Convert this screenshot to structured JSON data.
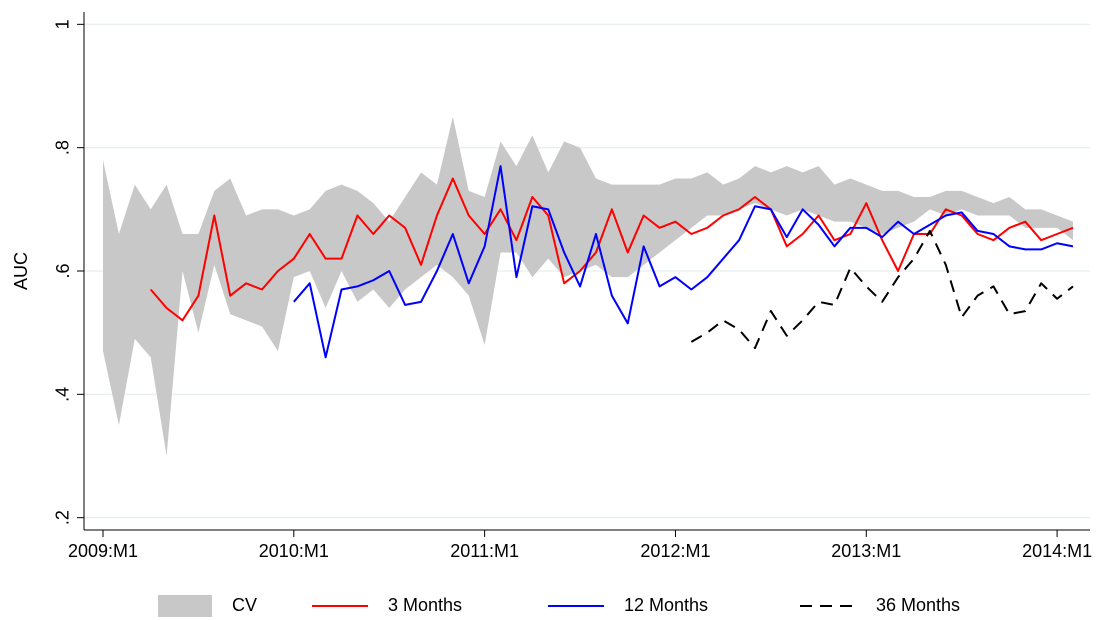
{
  "chart_data": {
    "type": "line",
    "y_label": "AUC",
    "x": [
      "2009:M1",
      "2009:M2",
      "2009:M3",
      "2009:M4",
      "2009:M5",
      "2009:M6",
      "2009:M7",
      "2009:M8",
      "2009:M9",
      "2009:M10",
      "2009:M11",
      "2009:M12",
      "2010:M1",
      "2010:M2",
      "2010:M3",
      "2010:M4",
      "2010:M5",
      "2010:M6",
      "2010:M7",
      "2010:M8",
      "2010:M9",
      "2010:M10",
      "2010:M11",
      "2010:M12",
      "2011:M1",
      "2011:M2",
      "2011:M3",
      "2011:M4",
      "2011:M5",
      "2011:M6",
      "2011:M7",
      "2011:M8",
      "2011:M9",
      "2011:M10",
      "2011:M11",
      "2011:M12",
      "2012:M1",
      "2012:M2",
      "2012:M3",
      "2012:M4",
      "2012:M5",
      "2012:M6",
      "2012:M7",
      "2012:M8",
      "2012:M9",
      "2012:M10",
      "2012:M11",
      "2012:M12",
      "2013:M1",
      "2013:M2",
      "2013:M3",
      "2013:M4",
      "2013:M5",
      "2013:M6",
      "2013:M7",
      "2013:M8",
      "2013:M9",
      "2013:M10",
      "2013:M11",
      "2013:M12",
      "2014:M1",
      "2014:M2"
    ],
    "xticks": [
      "2009:M1",
      "2010:M1",
      "2011:M1",
      "2012:M1",
      "2013:M1",
      "2014:M1"
    ],
    "ylim": [
      0.18,
      1.02
    ],
    "yticks": [
      {
        "value": 0.2,
        "label": ".2"
      },
      {
        "value": 0.4,
        "label": ".4"
      },
      {
        "value": 0.6,
        "label": ".6"
      },
      {
        "value": 0.8,
        "label": ".8"
      },
      1
    ],
    "grid": true,
    "legend": "bottom",
    "series": [
      {
        "name": "CV",
        "color": "#c8c8c8",
        "area": true,
        "high": [
          0.78,
          0.66,
          0.74,
          0.7,
          0.74,
          0.66,
          0.66,
          0.73,
          0.75,
          0.69,
          0.7,
          0.7,
          0.69,
          0.7,
          0.73,
          0.74,
          0.73,
          0.71,
          0.68,
          0.72,
          0.76,
          0.74,
          0.85,
          0.73,
          0.72,
          0.81,
          0.77,
          0.82,
          0.76,
          0.81,
          0.8,
          0.75,
          0.74,
          0.74,
          0.74,
          0.74,
          0.75,
          0.75,
          0.76,
          0.74,
          0.75,
          0.77,
          0.76,
          0.77,
          0.76,
          0.77,
          0.74,
          0.75,
          0.74,
          0.73,
          0.73,
          0.72,
          0.72,
          0.73,
          0.73,
          0.72,
          0.71,
          0.72,
          0.7,
          0.7,
          0.69,
          0.68
        ],
        "low": [
          0.47,
          0.35,
          0.49,
          0.46,
          0.3,
          0.6,
          0.5,
          0.61,
          0.53,
          0.52,
          0.51,
          0.47,
          0.59,
          0.6,
          0.54,
          0.6,
          0.55,
          0.57,
          0.54,
          0.57,
          0.59,
          0.61,
          0.59,
          0.56,
          0.48,
          0.63,
          0.63,
          0.59,
          0.62,
          0.59,
          0.6,
          0.61,
          0.59,
          0.59,
          0.61,
          0.63,
          0.65,
          0.67,
          0.69,
          0.69,
          0.7,
          0.71,
          0.7,
          0.69,
          0.7,
          0.69,
          0.68,
          0.68,
          0.67,
          0.66,
          0.67,
          0.68,
          0.7,
          0.69,
          0.7,
          0.69,
          0.69,
          0.69,
          0.67,
          0.67,
          0.67,
          0.65
        ]
      },
      {
        "name": "3 Months",
        "color": "#ff0000",
        "values": [
          null,
          null,
          null,
          0.57,
          0.54,
          0.52,
          0.56,
          0.69,
          0.56,
          0.58,
          0.57,
          0.6,
          0.62,
          0.66,
          0.62,
          0.62,
          0.69,
          0.66,
          0.69,
          0.67,
          0.61,
          0.69,
          0.75,
          0.69,
          0.66,
          0.7,
          0.65,
          0.72,
          0.69,
          0.58,
          0.6,
          0.63,
          0.7,
          0.63,
          0.69,
          0.67,
          0.68,
          0.66,
          0.67,
          0.69,
          0.7,
          0.72,
          0.7,
          0.64,
          0.66,
          0.69,
          0.65,
          0.66,
          0.71,
          0.65,
          0.6,
          0.66,
          0.66,
          0.7,
          0.69,
          0.66,
          0.65,
          0.67,
          0.68,
          0.65,
          0.66,
          0.67
        ]
      },
      {
        "name": "12 Months",
        "color": "#0000ff",
        "values": [
          null,
          null,
          null,
          null,
          null,
          null,
          null,
          null,
          null,
          null,
          null,
          null,
          0.55,
          0.58,
          0.46,
          0.57,
          0.575,
          0.585,
          0.6,
          0.545,
          0.55,
          0.6,
          0.66,
          0.58,
          0.64,
          0.77,
          0.59,
          0.705,
          0.7,
          0.63,
          0.575,
          0.66,
          0.56,
          0.515,
          0.64,
          0.575,
          0.59,
          0.57,
          0.59,
          0.62,
          0.65,
          0.705,
          0.7,
          0.655,
          0.7,
          0.675,
          0.64,
          0.67,
          0.67,
          0.655,
          0.68,
          0.66,
          0.675,
          0.69,
          0.695,
          0.665,
          0.66,
          0.64,
          0.635,
          0.635,
          0.645,
          0.64
        ]
      },
      {
        "name": "36 Months",
        "color": "#000000",
        "dashed": true,
        "values": [
          null,
          null,
          null,
          null,
          null,
          null,
          null,
          null,
          null,
          null,
          null,
          null,
          null,
          null,
          null,
          null,
          null,
          null,
          null,
          null,
          null,
          null,
          null,
          null,
          null,
          null,
          null,
          null,
          null,
          null,
          null,
          null,
          null,
          null,
          null,
          null,
          null,
          0.485,
          0.5,
          0.52,
          0.505,
          0.475,
          0.535,
          0.495,
          0.52,
          0.55,
          0.545,
          0.605,
          0.575,
          0.55,
          0.59,
          0.62,
          0.665,
          0.61,
          0.525,
          0.56,
          0.575,
          0.53,
          0.535,
          0.58,
          0.555,
          0.575
        ]
      }
    ]
  }
}
